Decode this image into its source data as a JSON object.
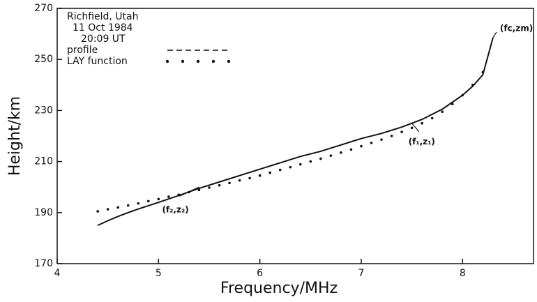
{
  "chart_data": {
    "type": "line",
    "title": "Richfield, Utah",
    "subtitle": [
      "11 Oct 1984",
      "20:09 UT"
    ],
    "x_label": "Frequency/MHz",
    "y_label": "Height/km",
    "xlim": [
      4,
      8.7
    ],
    "xticks": [
      4,
      5,
      6,
      7,
      8
    ],
    "ylim": [
      170,
      270
    ],
    "yticks": [
      170,
      190,
      210,
      230,
      250,
      270
    ],
    "grid": false,
    "legend": "upper left",
    "series": [
      {
        "name": "profile",
        "color": "#111111",
        "style": "line",
        "x": [
          4.4,
          4.5,
          4.6,
          4.7,
          4.8,
          4.9,
          5.0,
          5.2,
          5.4,
          5.6,
          5.8,
          6.0,
          6.2,
          6.4,
          6.6,
          6.8,
          7.0,
          7.2,
          7.4,
          7.6,
          7.8,
          8.0,
          8.1,
          8.2,
          8.3
        ],
        "values": [
          185,
          186.8,
          188.5,
          190,
          191.4,
          192.7,
          194,
          196.7,
          199.5,
          202,
          204.5,
          207,
          209.5,
          212,
          214,
          216.5,
          219,
          221,
          223.5,
          226.5,
          230.5,
          236,
          239.5,
          244,
          258.5
        ]
      },
      {
        "name": "LAY function",
        "color": "#111111",
        "style": "dots",
        "x": [
          4.4,
          4.5,
          4.6,
          4.7,
          4.8,
          4.9,
          5.0,
          5.1,
          5.2,
          5.3,
          5.4,
          5.5,
          5.6,
          5.7,
          5.8,
          5.9,
          6.0,
          6.1,
          6.2,
          6.3,
          6.4,
          6.5,
          6.6,
          6.7,
          6.8,
          6.9,
          7.0,
          7.1,
          7.2,
          7.3,
          7.4,
          7.5,
          7.6,
          7.7,
          7.8,
          7.9,
          8.0,
          8.1,
          8.2
        ],
        "values": [
          190.5,
          191.3,
          192.0,
          192.8,
          193.6,
          194.5,
          195.3,
          196.2,
          197.0,
          198.0,
          198.9,
          199.8,
          200.7,
          201.6,
          202.6,
          203.5,
          204.5,
          205.6,
          206.7,
          207.8,
          208.9,
          210.0,
          211.1,
          212.3,
          213.5,
          214.7,
          216.0,
          217.3,
          218.6,
          220.0,
          221.6,
          223.2,
          225.0,
          227.0,
          229.5,
          232.5,
          236.0,
          240.0,
          245.0
        ]
      }
    ],
    "annotations": [
      {
        "text": "(f₁,z₁)",
        "x": 7.5,
        "y": 225
      },
      {
        "text": "(f₂,z₂)",
        "x": 5.4,
        "y": 200
      },
      {
        "text": "(fc,zm)",
        "x": 8.3,
        "y": 258.5
      }
    ]
  }
}
